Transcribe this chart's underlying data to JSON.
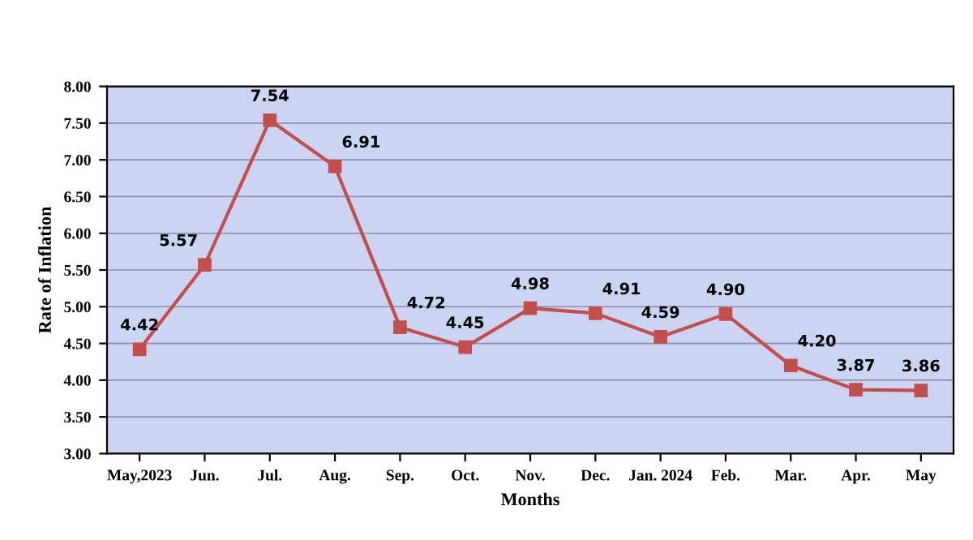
{
  "chart_data": {
    "type": "line",
    "xlabel": "Months",
    "ylabel": "Rate of Inflation",
    "categories": [
      "May,2023",
      "Jun.",
      "Jul.",
      "Aug.",
      "Sep.",
      "Oct.",
      "Nov.",
      "Dec.",
      "Jan. 2024",
      "Feb.",
      "Mar.",
      "Apr.",
      "May"
    ],
    "series": [
      {
        "color": "#c0504d",
        "values": [
          4.42,
          5.57,
          7.54,
          6.91,
          4.72,
          4.45,
          4.98,
          4.91,
          4.59,
          4.9,
          4.2,
          3.87,
          3.86
        ],
        "value_labels": [
          "4.42",
          "5.57",
          "7.54",
          "6.91",
          "4.72",
          "4.45",
          "4.98",
          "4.91",
          "4.59",
          "4.90",
          "4.20",
          "3.87",
          "3.86"
        ]
      }
    ],
    "ylim": [
      3,
      8
    ],
    "yticks": [
      {
        "value": 3,
        "label": "3.00"
      },
      {
        "value": 3.5,
        "label": "3.50"
      },
      {
        "value": 4,
        "label": "4.00"
      },
      {
        "value": 4.5,
        "label": "4.50"
      },
      {
        "value": 5,
        "label": "5.00"
      },
      {
        "value": 5.5,
        "label": "5.50"
      },
      {
        "value": 6,
        "label": "6.00"
      },
      {
        "value": 6.5,
        "label": "6.50"
      },
      {
        "value": 7,
        "label": "7.00"
      },
      {
        "value": 7.5,
        "label": "7.50"
      },
      {
        "value": 8,
        "label": "8.00"
      }
    ],
    "grid": "y",
    "marker": "square",
    "line_style": "solid",
    "legend": false
  }
}
